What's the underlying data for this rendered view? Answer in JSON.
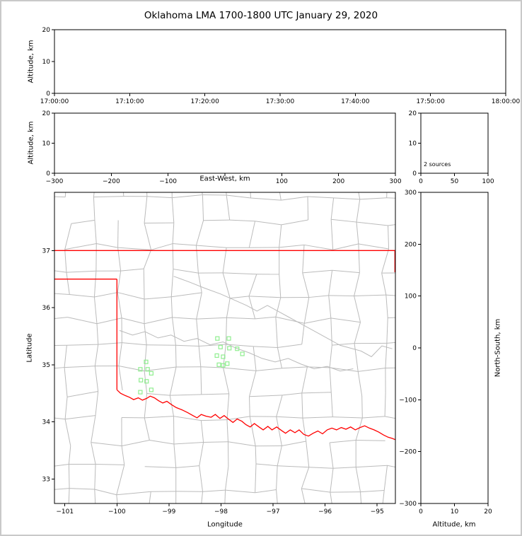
{
  "title": "Oklahoma LMA 1700-1800 UTC January 29, 2020",
  "chart_data": [
    {
      "id": "time_height",
      "type": "scatter",
      "xlabel": "",
      "ylabel": "Altitude, km",
      "xlim": [
        0,
        3600
      ],
      "ylim": [
        0,
        20
      ],
      "xticks": [
        0,
        600,
        1200,
        1800,
        2400,
        3000,
        3600
      ],
      "xtick_labels": [
        "17:00:00",
        "17:10:00",
        "17:20:00",
        "17:30:00",
        "17:40:00",
        "17:50:00",
        "18:00:00"
      ],
      "yticks": [
        0,
        10,
        20
      ],
      "ytick_labels": [
        "0",
        "10",
        "20"
      ],
      "grid": false,
      "points": []
    },
    {
      "id": "ew_height",
      "type": "scatter",
      "xlabel": "East-West, km",
      "ylabel": "Altitude, km",
      "xlim": [
        -300,
        300
      ],
      "ylim": [
        0,
        20
      ],
      "xticks": [
        -300,
        -200,
        -100,
        0,
        100,
        200,
        300
      ],
      "xtick_labels": [
        "−300",
        "−200",
        "−100",
        "",
        "100",
        "200",
        "300"
      ],
      "yticks": [
        0,
        10,
        20
      ],
      "ytick_labels": [
        "0",
        "10",
        "20"
      ],
      "grid": false,
      "points": []
    },
    {
      "id": "alt_hist",
      "type": "line",
      "annotation": "2 sources",
      "xlim": [
        0,
        100
      ],
      "ylim": [
        0,
        20
      ],
      "xticks": [
        0,
        50,
        100
      ],
      "xtick_labels": [
        "0",
        "50",
        "100"
      ],
      "yticks": [
        0,
        10,
        20
      ],
      "ytick_labels": [
        "0",
        "10",
        "20"
      ],
      "grid": false,
      "points": []
    },
    {
      "id": "map",
      "type": "scatter",
      "xlabel": "Longitude",
      "ylabel": "Latitude",
      "xlim": [
        -101.2,
        -94.65
      ],
      "ylim": [
        32.57,
        38.02
      ],
      "xticks": [
        -101,
        -100,
        -99,
        -98,
        -97,
        -96,
        -95
      ],
      "xtick_labels": [
        "−101",
        "−100",
        "−99",
        "−98",
        "−97",
        "−96",
        "−95"
      ],
      "yticks": [
        33,
        34,
        35,
        36,
        37
      ],
      "ytick_labels": [
        "33",
        "34",
        "35",
        "36",
        "37"
      ],
      "marker": "open-square",
      "marker_color": "#90EE90",
      "border_color": "#ff0000",
      "county_color": "#bbbbbb",
      "grid": false,
      "points": [
        [
          -99.44,
          35.05
        ],
        [
          -99.55,
          34.92
        ],
        [
          -99.41,
          34.92
        ],
        [
          -99.34,
          34.85
        ],
        [
          -99.54,
          34.73
        ],
        [
          -99.43,
          34.71
        ],
        [
          -99.34,
          34.56
        ],
        [
          -99.55,
          34.52
        ],
        [
          -98.07,
          35.46
        ],
        [
          -97.85,
          35.46
        ],
        [
          -98.01,
          35.31
        ],
        [
          -97.84,
          35.29
        ],
        [
          -97.69,
          35.28
        ],
        [
          -97.59,
          35.19
        ],
        [
          -98.08,
          35.16
        ],
        [
          -97.96,
          35.14
        ],
        [
          -98.04,
          35.0
        ],
        [
          -97.96,
          34.99
        ],
        [
          -97.88,
          35.02
        ]
      ],
      "state_border": [
        [
          [
            -101.21,
            37.0
          ],
          [
            -94.64,
            37.0
          ]
        ],
        [
          [
            -101.21,
            36.5
          ],
          [
            -100.0,
            36.5
          ]
        ],
        [
          [
            -100.0,
            36.5
          ],
          [
            -100.0,
            34.56
          ]
        ],
        [
          [
            -94.66,
            37.0
          ],
          [
            -94.66,
            36.62
          ]
        ],
        [
          [
            -100.0,
            34.56
          ],
          [
            -99.93,
            34.5
          ],
          [
            -99.84,
            34.46
          ],
          [
            -99.76,
            34.43
          ],
          [
            -99.68,
            34.39
          ],
          [
            -99.59,
            34.42
          ],
          [
            -99.51,
            34.38
          ],
          [
            -99.43,
            34.41
          ],
          [
            -99.36,
            34.45
          ],
          [
            -99.28,
            34.42
          ],
          [
            -99.2,
            34.37
          ],
          [
            -99.12,
            34.33
          ],
          [
            -99.04,
            34.36
          ],
          [
            -98.95,
            34.3
          ],
          [
            -98.86,
            34.25
          ],
          [
            -98.75,
            34.21
          ],
          [
            -98.64,
            34.16
          ],
          [
            -98.54,
            34.11
          ],
          [
            -98.46,
            34.07
          ],
          [
            -98.38,
            34.13
          ],
          [
            -98.29,
            34.1
          ],
          [
            -98.19,
            34.08
          ],
          [
            -98.11,
            34.13
          ],
          [
            -98.02,
            34.06
          ],
          [
            -97.94,
            34.11
          ],
          [
            -97.86,
            34.05
          ],
          [
            -97.77,
            33.99
          ],
          [
            -97.69,
            34.05
          ],
          [
            -97.6,
            34.01
          ],
          [
            -97.52,
            33.95
          ],
          [
            -97.44,
            33.91
          ],
          [
            -97.36,
            33.97
          ],
          [
            -97.27,
            33.91
          ],
          [
            -97.19,
            33.86
          ],
          [
            -97.1,
            33.92
          ],
          [
            -97.02,
            33.86
          ],
          [
            -96.93,
            33.91
          ],
          [
            -96.84,
            33.85
          ],
          [
            -96.76,
            33.8
          ],
          [
            -96.67,
            33.86
          ],
          [
            -96.58,
            33.81
          ],
          [
            -96.5,
            33.86
          ],
          [
            -96.41,
            33.78
          ],
          [
            -96.32,
            33.75
          ],
          [
            -96.23,
            33.8
          ],
          [
            -96.14,
            33.84
          ],
          [
            -96.05,
            33.79
          ],
          [
            -95.96,
            33.86
          ],
          [
            -95.87,
            33.89
          ],
          [
            -95.78,
            33.86
          ],
          [
            -95.69,
            33.9
          ],
          [
            -95.6,
            33.87
          ],
          [
            -95.51,
            33.91
          ],
          [
            -95.42,
            33.86
          ],
          [
            -95.33,
            33.9
          ],
          [
            -95.24,
            33.93
          ],
          [
            -95.15,
            33.89
          ],
          [
            -95.06,
            33.86
          ],
          [
            -94.97,
            33.82
          ],
          [
            -94.88,
            33.77
          ],
          [
            -94.79,
            33.73
          ],
          [
            -94.71,
            33.71
          ],
          [
            -94.63,
            33.68
          ]
        ]
      ],
      "rivers": [
        [
          [
            -99.95,
            35.6
          ],
          [
            -99.7,
            35.52
          ],
          [
            -99.46,
            35.58
          ],
          [
            -99.21,
            35.47
          ],
          [
            -98.96,
            35.52
          ],
          [
            -98.71,
            35.41
          ],
          [
            -98.46,
            35.46
          ],
          [
            -98.21,
            35.35
          ],
          [
            -97.96,
            35.4
          ],
          [
            -97.71,
            35.29
          ],
          [
            -97.46,
            35.21
          ],
          [
            -97.21,
            35.11
          ],
          [
            -96.96,
            35.05
          ],
          [
            -96.71,
            35.11
          ],
          [
            -96.46,
            35.01
          ],
          [
            -96.21,
            34.93
          ],
          [
            -95.96,
            34.97
          ],
          [
            -95.71,
            34.89
          ],
          [
            -95.46,
            34.93
          ]
        ],
        [
          [
            -98.91,
            36.55
          ],
          [
            -98.61,
            36.45
          ],
          [
            -98.31,
            36.34
          ],
          [
            -98.01,
            36.24
          ],
          [
            -97.76,
            36.14
          ],
          [
            -97.51,
            36.04
          ],
          [
            -97.31,
            35.94
          ],
          [
            -97.11,
            36.04
          ],
          [
            -96.91,
            35.94
          ],
          [
            -96.71,
            35.84
          ],
          [
            -96.51,
            35.74
          ],
          [
            -96.31,
            35.64
          ],
          [
            -96.11,
            35.54
          ],
          [
            -95.91,
            35.44
          ],
          [
            -95.71,
            35.34
          ],
          [
            -95.51,
            35.29
          ],
          [
            -95.31,
            35.24
          ],
          [
            -95.11,
            35.14
          ],
          [
            -94.91,
            35.33
          ],
          [
            -94.71,
            35.28
          ]
        ]
      ]
    },
    {
      "id": "ns_height",
      "type": "scatter",
      "xlabel": "Altitude, km",
      "ylabel": "North-South, km",
      "xlim": [
        0,
        20
      ],
      "ylim": [
        -300,
        300
      ],
      "xticks": [
        0,
        10,
        20
      ],
      "xtick_labels": [
        "0",
        "10",
        "20"
      ],
      "yticks": [
        -300,
        -200,
        -100,
        0,
        100,
        200,
        300
      ],
      "ytick_labels": [
        "−300",
        "−200",
        "−100",
        "0",
        "100",
        "200",
        "300"
      ],
      "grid": false,
      "points": []
    }
  ]
}
